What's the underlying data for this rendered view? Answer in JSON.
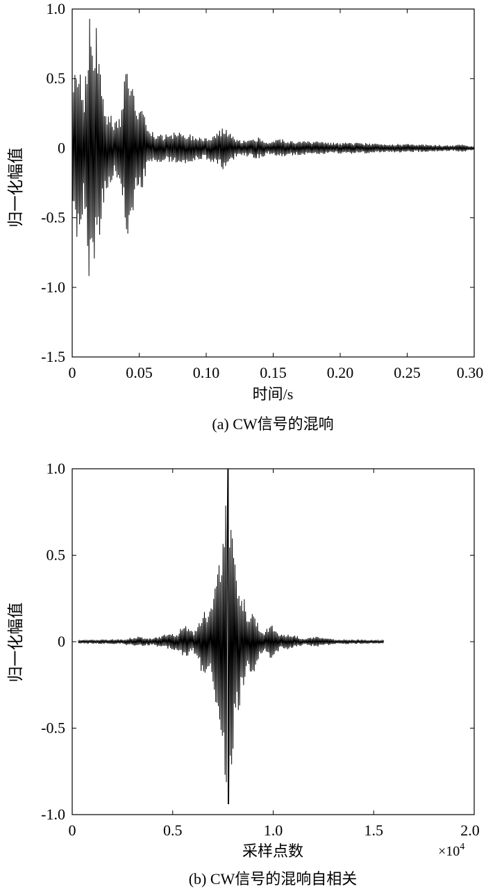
{
  "chart_data": [
    {
      "type": "line",
      "panel": "a",
      "caption": "(a) CW信号的混响",
      "xlabel": "时间/s",
      "ylabel": "归一化幅值",
      "xlim": [
        0,
        0.3
      ],
      "ylim": [
        -1.5,
        1.0
      ],
      "xticks": [
        "0",
        "0.05",
        "0.10",
        "0.15",
        "0.20",
        "0.25",
        "0.30"
      ],
      "xtick_values": [
        0,
        0.05,
        0.1,
        0.15,
        0.2,
        0.25,
        0.3
      ],
      "yticks": [
        "1.0",
        "0.5",
        "0",
        "-0.5",
        "-1.0",
        "-1.5"
      ],
      "ytick_values": [
        1.0,
        0.5,
        0,
        -0.5,
        -1.0,
        -1.5
      ],
      "grid": false,
      "signal": {
        "x_end": 0.3,
        "samples": 600,
        "envelope": [
          [
            0.0,
            0.55
          ],
          [
            0.003,
            0.75
          ],
          [
            0.006,
            0.6
          ],
          [
            0.009,
            0.4
          ],
          [
            0.012,
            1.0
          ],
          [
            0.016,
            0.82
          ],
          [
            0.019,
            0.92
          ],
          [
            0.022,
            0.45
          ],
          [
            0.026,
            0.3
          ],
          [
            0.031,
            0.2
          ],
          [
            0.036,
            0.25
          ],
          [
            0.04,
            0.6
          ],
          [
            0.043,
            0.68
          ],
          [
            0.047,
            0.35
          ],
          [
            0.052,
            0.3
          ],
          [
            0.056,
            0.15
          ],
          [
            0.062,
            0.1
          ],
          [
            0.07,
            0.1
          ],
          [
            0.08,
            0.12
          ],
          [
            0.09,
            0.1
          ],
          [
            0.1,
            0.08
          ],
          [
            0.11,
            0.14
          ],
          [
            0.115,
            0.16
          ],
          [
            0.122,
            0.06
          ],
          [
            0.13,
            0.06
          ],
          [
            0.14,
            0.08
          ],
          [
            0.146,
            0.04
          ],
          [
            0.155,
            0.07
          ],
          [
            0.165,
            0.05
          ],
          [
            0.18,
            0.05
          ],
          [
            0.195,
            0.04
          ],
          [
            0.21,
            0.04
          ],
          [
            0.23,
            0.035
          ],
          [
            0.25,
            0.03
          ],
          [
            0.27,
            0.025
          ],
          [
            0.285,
            0.02
          ],
          [
            0.29,
            0.03
          ],
          [
            0.3,
            0.015
          ]
        ]
      }
    },
    {
      "type": "line",
      "panel": "b",
      "caption": "(b) CW信号的混响自相关",
      "xlabel": "采样点数",
      "ylabel": "归一化幅值",
      "x_multiplier": "×10",
      "x_multiplier_exp": "4",
      "xlim": [
        0,
        2.0
      ],
      "ylim": [
        -1.0,
        1.0
      ],
      "xticks": [
        "0",
        "0.5",
        "1.0",
        "1.5",
        "2.0"
      ],
      "xtick_values": [
        0,
        0.5,
        1.0,
        1.5,
        2.0
      ],
      "yticks": [
        "1.0",
        "0.5",
        "0",
        "-0.5",
        "-1.0"
      ],
      "ytick_values": [
        1.0,
        0.5,
        0,
        -0.5,
        -1.0
      ],
      "grid": false,
      "signal": {
        "x_start": 0.03,
        "x_end": 1.55,
        "peak_x": 0.775,
        "peak_max": 1.0,
        "peak_min": -0.94,
        "samples": 460,
        "envelope": [
          [
            0.03,
            0.01
          ],
          [
            0.25,
            0.015
          ],
          [
            0.32,
            0.03
          ],
          [
            0.4,
            0.02
          ],
          [
            0.45,
            0.04
          ],
          [
            0.52,
            0.05
          ],
          [
            0.54,
            0.08
          ],
          [
            0.56,
            0.1
          ],
          [
            0.6,
            0.06
          ],
          [
            0.62,
            0.1
          ],
          [
            0.65,
            0.2
          ],
          [
            0.68,
            0.16
          ],
          [
            0.7,
            0.3
          ],
          [
            0.73,
            0.45
          ],
          [
            0.755,
            0.75
          ],
          [
            0.775,
            1.0
          ],
          [
            0.795,
            0.75
          ],
          [
            0.82,
            0.45
          ],
          [
            0.85,
            0.3
          ],
          [
            0.87,
            0.16
          ],
          [
            0.9,
            0.2
          ],
          [
            0.93,
            0.1
          ],
          [
            0.95,
            0.06
          ],
          [
            0.99,
            0.1
          ],
          [
            1.01,
            0.08
          ],
          [
            1.03,
            0.05
          ],
          [
            1.1,
            0.04
          ],
          [
            1.15,
            0.02
          ],
          [
            1.23,
            0.03
          ],
          [
            1.3,
            0.015
          ],
          [
            1.55,
            0.01
          ]
        ]
      }
    }
  ]
}
